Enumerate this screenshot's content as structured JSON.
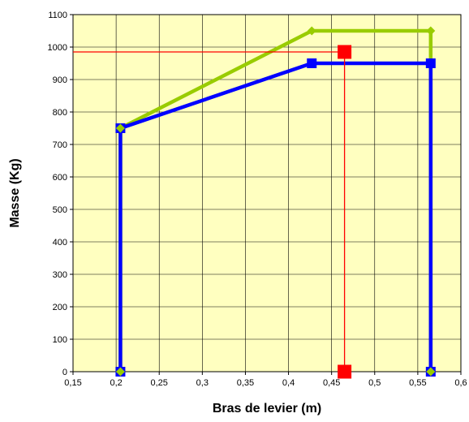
{
  "chart_data": {
    "type": "line",
    "title": "",
    "xlabel": "Bras de levier (m)",
    "ylabel": "Masse (Kg)",
    "xlim": [
      0.15,
      0.6
    ],
    "ylim": [
      0,
      1100
    ],
    "x_ticks": [
      0.15,
      0.2,
      0.25,
      0.3,
      0.35,
      0.4,
      0.45,
      0.5,
      0.55,
      0.6
    ],
    "x_tick_labels": [
      "0,15",
      "0,2",
      "0,25",
      "0,3",
      "0,35",
      "0,4",
      "0,45",
      "0,5",
      "0,55",
      "0,6"
    ],
    "y_ticks": [
      0,
      100,
      200,
      300,
      400,
      500,
      600,
      700,
      800,
      900,
      1000,
      1100
    ],
    "y_tick_labels": [
      "0",
      "100",
      "200",
      "300",
      "400",
      "500",
      "600",
      "700",
      "800",
      "900",
      "1000",
      "1100"
    ],
    "grid": true,
    "plot_background": "#ffffc0",
    "legend": "none",
    "series": [
      {
        "color": "#99cc00",
        "marker": "diamond",
        "points": [
          [
            0.205,
            0
          ],
          [
            0.205,
            750
          ],
          [
            0.427,
            1050
          ],
          [
            0.565,
            1050
          ],
          [
            0.565,
            0
          ]
        ]
      },
      {
        "color": "#0000ff",
        "marker": "square",
        "points": [
          [
            0.205,
            0
          ],
          [
            0.205,
            750
          ],
          [
            0.427,
            950
          ],
          [
            0.565,
            950
          ],
          [
            0.565,
            0
          ]
        ]
      }
    ],
    "marker_point": {
      "color": "#ff0000",
      "x": 0.465,
      "y": 985,
      "x_axis_marker": [
        0.465,
        0
      ]
    }
  }
}
